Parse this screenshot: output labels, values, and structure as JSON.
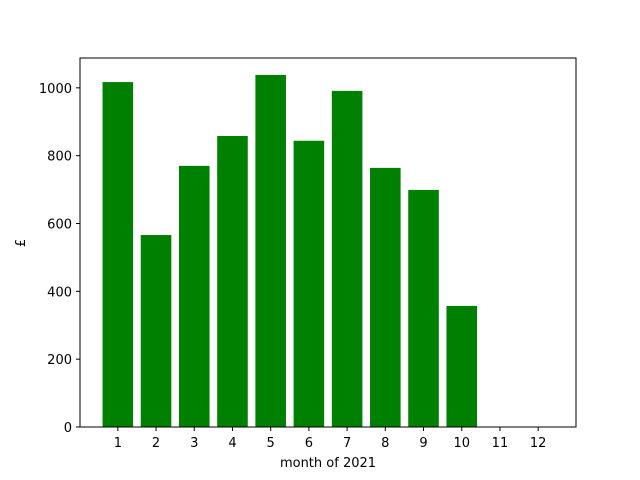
{
  "chart_data": {
    "type": "bar",
    "xlabel": "month of 2021",
    "ylabel": "£",
    "x": [
      1,
      2,
      3,
      4,
      5,
      6,
      7,
      8,
      9,
      10,
      11,
      12
    ],
    "values": [
      1017,
      566,
      770,
      858,
      1038,
      844,
      991,
      764,
      699,
      357,
      0,
      0
    ],
    "color": "#008000",
    "xlim": [
      0.01,
      12.99
    ],
    "xticks": [
      1,
      2,
      3,
      4,
      5,
      6,
      7,
      8,
      9,
      10,
      11,
      12
    ],
    "ylim": [
      0,
      1088
    ],
    "yticks": [
      0,
      200,
      400,
      600,
      800,
      1000
    ]
  }
}
